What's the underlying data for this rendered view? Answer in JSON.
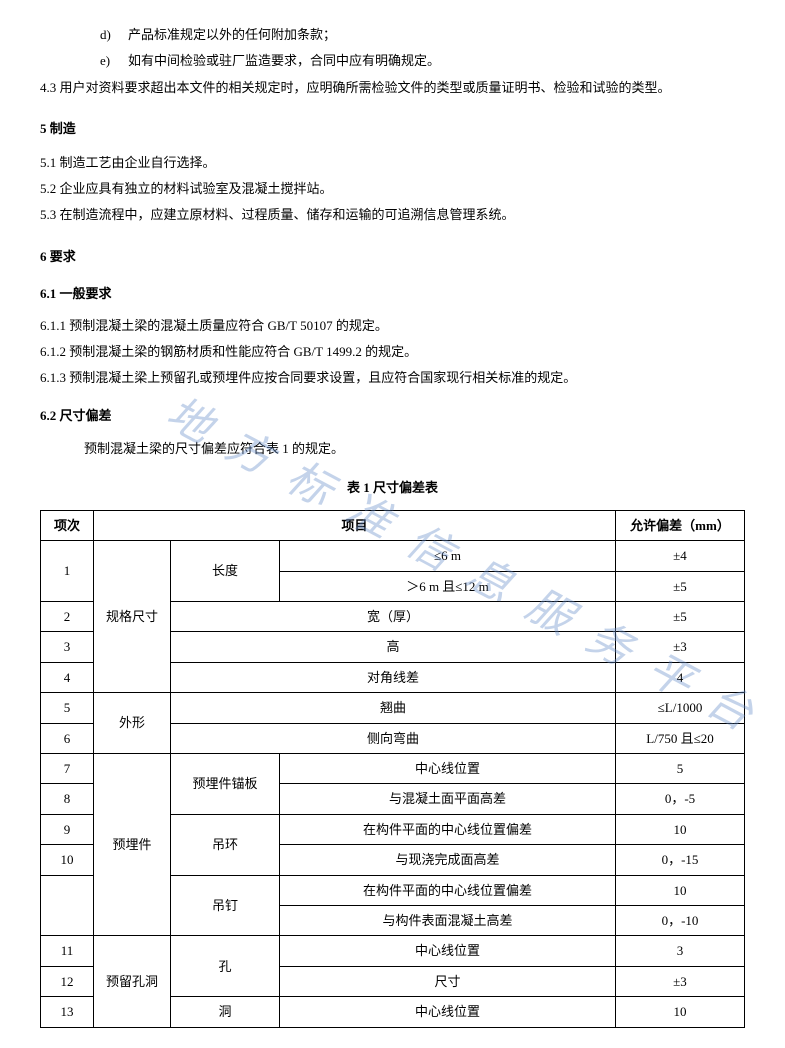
{
  "list": {
    "d": {
      "marker": "d)",
      "text": "产品标准规定以外的任何附加条款；"
    },
    "e": {
      "marker": "e)",
      "text": "如有中间检验或驻厂监造要求，合同中应有明确规定。"
    }
  },
  "para43": "4.3  用户对资料要求超出本文件的相关规定时，应明确所需检验文件的类型或质量证明书、检验和试验的类型。",
  "sec5": {
    "head": "5  制造",
    "p1": "5.1  制造工艺由企业自行选择。",
    "p2": "5.2  企业应具有独立的材料试验室及混凝土搅拌站。",
    "p3": "5.3  在制造流程中，应建立原材料、过程质量、储存和运输的可追溯信息管理系统。"
  },
  "sec6": {
    "head": "6  要求",
    "sub61": "6.1  一般要求",
    "p611": "6.1.1  预制混凝土梁的混凝土质量应符合 GB/T 50107 的规定。",
    "p612": "6.1.2  预制混凝土梁的钢筋材质和性能应符合 GB/T 1499.2 的规定。",
    "p613": "6.1.3  预制混凝土梁上预留孔或预埋件应按合同要求设置，且应符合国家现行相关标准的规定。",
    "sub62": "6.2  尺寸偏差",
    "intro": "预制混凝土梁的尺寸偏差应符合表 1 的规定。",
    "caption": "表 1   尺寸偏差表"
  },
  "table": {
    "headers": {
      "idx": "项次",
      "item": "项目",
      "tol": "允许偏差（mm）"
    },
    "cat_spec": "规格尺寸",
    "cat_shape": "外形",
    "cat_embed": "预埋件",
    "cat_hole": "预留孔洞",
    "sub_len": "长度",
    "sub_width": "宽（厚）",
    "sub_height": "高",
    "sub_diag": "对角线差",
    "sub_warp": "翘曲",
    "sub_lateral": "侧向弯曲",
    "sub_anchor": "预埋件锚板",
    "sub_ring": "吊环",
    "sub_nail": "吊钉",
    "sub_kong": "孔",
    "sub_dong": "洞",
    "cond_le6": "≤6 m",
    "cond_6to12": "＞6 m 且≤12 m",
    "cond_center": "中心线位置",
    "cond_conc_plane": "与混凝土面平面高差",
    "cond_member_center": "在构件平面的中心线位置偏差",
    "cond_cast_surface": "与现浇完成面高差",
    "cond_member_conc": "与构件表面混凝土高差",
    "cond_size": "尺寸",
    "r1": {
      "idx": "1",
      "tol1": "±4",
      "tol2": "±5"
    },
    "r2": {
      "idx": "2",
      "tol": "±5"
    },
    "r3": {
      "idx": "3",
      "tol": "±3"
    },
    "r4": {
      "idx": "4",
      "tol": "4"
    },
    "r5": {
      "idx": "5",
      "tol": "≤L/1000"
    },
    "r6": {
      "idx": "6",
      "tol": "L/750 且≤20"
    },
    "r7": {
      "idx": "7",
      "tol": "5"
    },
    "r8": {
      "idx": "8",
      "tol": "0，-5"
    },
    "r9": {
      "idx": "9",
      "tol": "10"
    },
    "r10": {
      "idx": "10",
      "tol": "0，-15"
    },
    "r10b_tol": "10",
    "r10c_tol": "0，-10",
    "r11": {
      "idx": "11",
      "tol": "3"
    },
    "r12": {
      "idx": "12",
      "tol": "±3"
    },
    "r13": {
      "idx": "13",
      "tol": "10"
    }
  },
  "watermark": "地方标准信息服务平台"
}
